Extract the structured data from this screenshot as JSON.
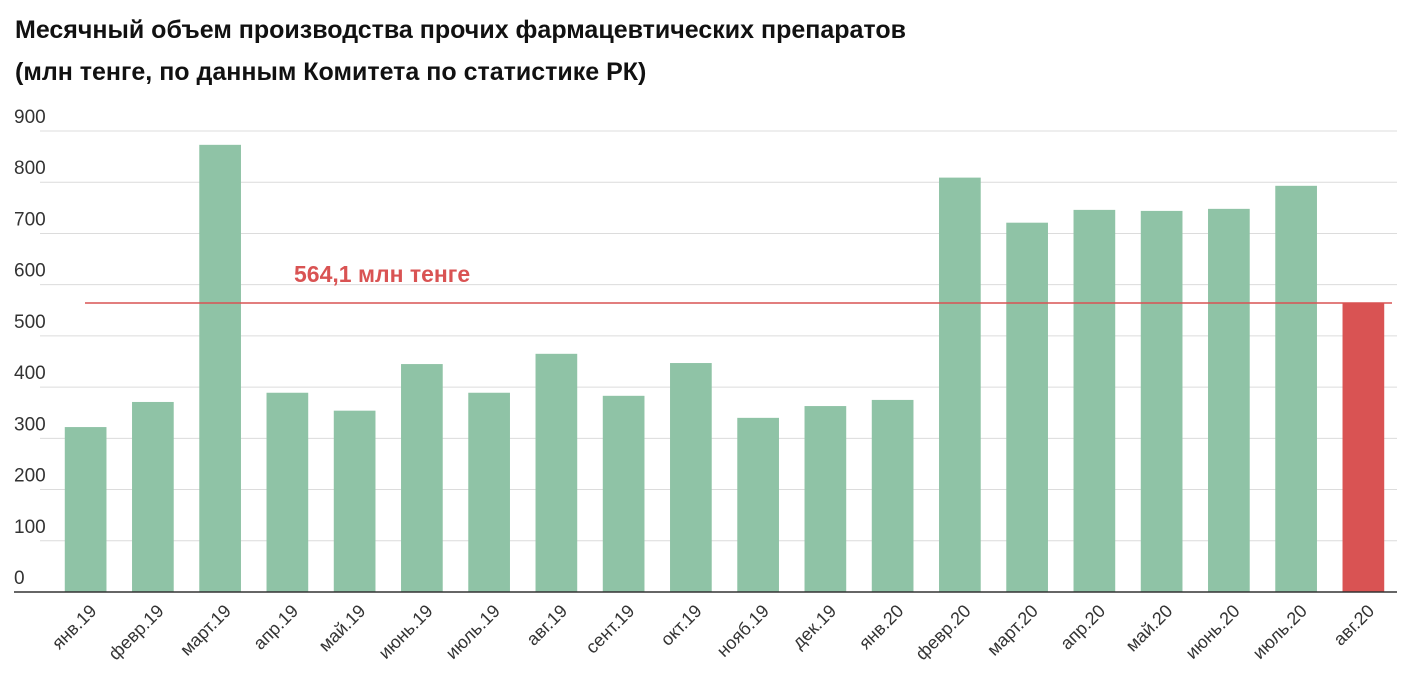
{
  "chart_data": {
    "type": "bar",
    "title": "Месячный объем производства прочих фармацевтических препаратов",
    "subtitle": "(млн тенге, по данным Комитета по статистике РК)",
    "categories": [
      "янв.19",
      "февр.19",
      "март.19",
      "апр.19",
      "май.19",
      "июнь.19",
      "июль.19",
      "авг.19",
      "сент.19",
      "окт.19",
      "нояб.19",
      "дек.19",
      "янв.20",
      "февр.20",
      "март.20",
      "апр.20",
      "май.20",
      "июнь.20",
      "июль.20",
      "авг.20"
    ],
    "values": [
      322,
      371,
      873,
      389,
      354,
      445,
      389,
      465,
      383,
      447,
      340,
      363,
      375,
      809,
      721,
      746,
      744,
      748,
      793,
      564.1
    ],
    "colors": [
      "#8fc3a6",
      "#8fc3a6",
      "#8fc3a6",
      "#8fc3a6",
      "#8fc3a6",
      "#8fc3a6",
      "#8fc3a6",
      "#8fc3a6",
      "#8fc3a6",
      "#8fc3a6",
      "#8fc3a6",
      "#8fc3a6",
      "#8fc3a6",
      "#8fc3a6",
      "#8fc3a6",
      "#8fc3a6",
      "#8fc3a6",
      "#8fc3a6",
      "#8fc3a6",
      "#d95353"
    ],
    "reference_line": {
      "value": 564.1,
      "label": "564,1 млн тенге",
      "color": "#d95353"
    },
    "ylim": [
      0,
      900
    ],
    "yticks": [
      0,
      100,
      200,
      300,
      400,
      500,
      600,
      700,
      800,
      900
    ],
    "grid": true
  }
}
